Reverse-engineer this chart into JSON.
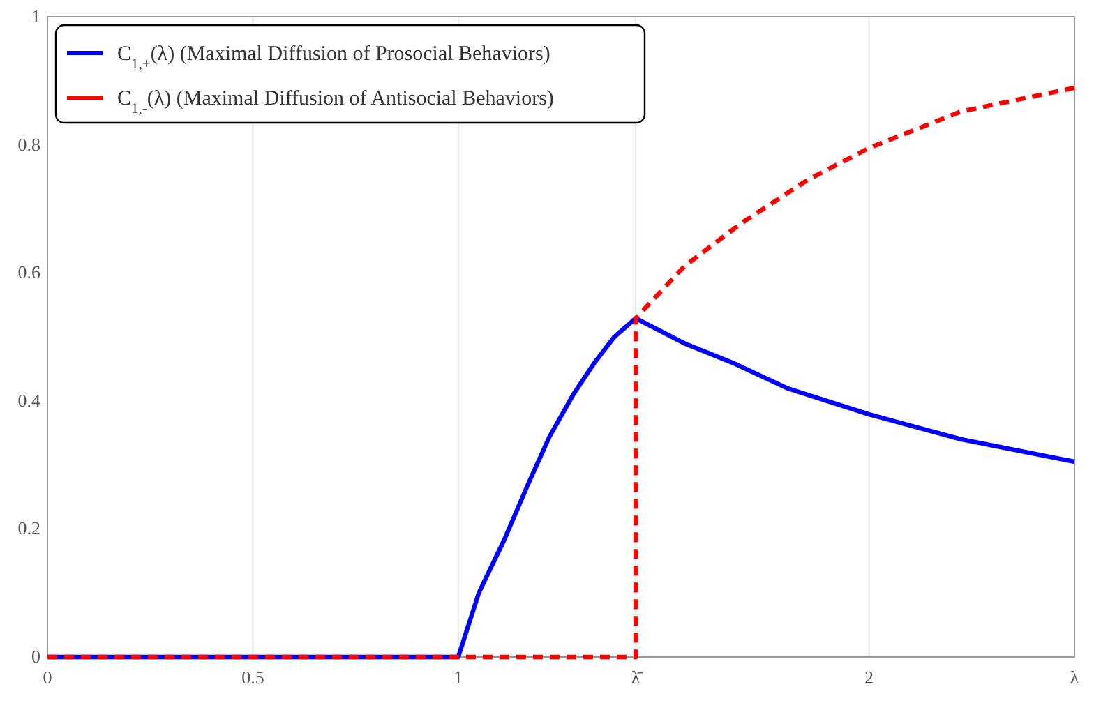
{
  "chart_data": {
    "type": "line",
    "xlim": [
      0,
      2.5
    ],
    "ylim": [
      0,
      1
    ],
    "xticks": [
      0,
      0.5,
      1,
      {
        "value": 1.432,
        "label": "λ̄"
      },
      2,
      {
        "value": 2.5,
        "label": "λ"
      }
    ],
    "yticks": [
      0,
      0.2,
      0.4,
      0.6,
      0.8,
      1
    ],
    "grid": "x",
    "legend": "top left",
    "marker": "none",
    "series": [
      {
        "name": "C$_{1,+}$(λ) (Maximal Diffusion of Prosocial Behaviors)",
        "color": "#0000ff",
        "line_style": "solid",
        "x": [
          0,
          1,
          1.05,
          1.112,
          1.17,
          1.222,
          1.28,
          1.332,
          1.38,
          1.432,
          1.55,
          1.666,
          1.8,
          2.0,
          2.224,
          2.5
        ],
        "values": [
          0,
          0,
          0.1,
          0.183,
          0.27,
          0.344,
          0.41,
          0.46,
          0.5,
          0.529,
          0.49,
          0.46,
          0.42,
          0.379,
          0.34,
          0.305
        ]
      },
      {
        "name": "C$_{1,-}$(λ) (Maximal Diffusion of Antisocial Behaviors)",
        "color": "#ff0000",
        "line_style": "dashed",
        "x": [
          0,
          1.432,
          1.432,
          1.55,
          1.69,
          1.85,
          2.0,
          2.224,
          2.5
        ],
        "values": [
          0,
          0,
          0.529,
          0.61,
          0.678,
          0.745,
          0.795,
          0.852,
          0.889
        ]
      }
    ]
  }
}
